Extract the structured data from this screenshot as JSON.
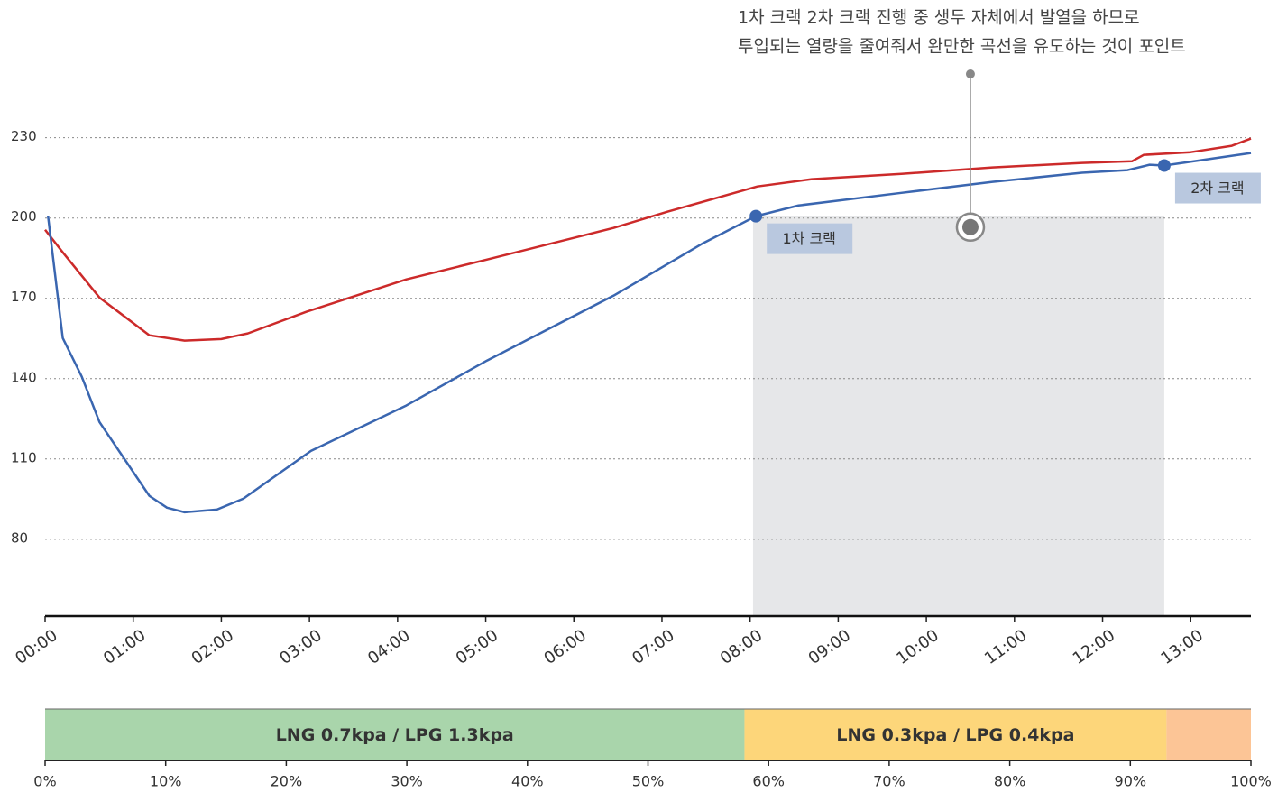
{
  "chart_data": [
    {
      "type": "line",
      "xlim": [
        0,
        821
      ],
      "ylim": [
        51.3,
        240
      ],
      "xticks": [
        {
          "value": 0,
          "label": "00:00"
        },
        {
          "value": 60,
          "label": "01:00"
        },
        {
          "value": 120,
          "label": "02:00"
        },
        {
          "value": 180,
          "label": "03:00"
        },
        {
          "value": 240,
          "label": "04:00"
        },
        {
          "value": 300,
          "label": "05:00"
        },
        {
          "value": 360,
          "label": "06:00"
        },
        {
          "value": 420,
          "label": "07:00"
        },
        {
          "value": 480,
          "label": "08:00"
        },
        {
          "value": 540,
          "label": "09:00"
        },
        {
          "value": 600,
          "label": "10:00"
        },
        {
          "value": 660,
          "label": "11:00"
        },
        {
          "value": 720,
          "label": "12:00"
        },
        {
          "value": 780,
          "label": "13:00"
        }
      ],
      "yticks": [
        80,
        110,
        140,
        170,
        200,
        230
      ],
      "grid": true,
      "series": [
        {
          "color": "#cc2a2a",
          "x": [
            0,
            12,
            37,
            71,
            95,
            120,
            138,
            178,
            246,
            301,
            387,
            424,
            485,
            522,
            583,
            645,
            706,
            740,
            748,
            780,
            808,
            821
          ],
          "values": [
            195.6,
            187.2,
            170.3,
            156.2,
            154.2,
            154.8,
            156.9,
            165,
            177.1,
            184.5,
            196.3,
            202.4,
            211.8,
            214.5,
            216.5,
            218.9,
            220.6,
            221.2,
            223.6,
            224.6,
            227,
            229.7
          ]
        },
        {
          "color": "#3a66b0",
          "x": [
            2,
            12,
            25,
            37,
            71,
            83,
            95,
            117,
            135,
            181,
            246,
            301,
            387,
            448,
            484,
            513,
            583,
            645,
            706,
            737,
            752,
            762,
            821
          ],
          "values": [
            200.7,
            155.2,
            140.7,
            123.8,
            96.2,
            91.8,
            90.1,
            91.1,
            95.2,
            113,
            130,
            146.8,
            171,
            190.6,
            200.7,
            204.7,
            209.4,
            213.5,
            216.9,
            217.9,
            219.9,
            219.6,
            224.3
          ]
        }
      ],
      "shade": [
        482,
        762
      ],
      "crack_labels": [
        {
          "label": "1차 크랙",
          "point": 14
        },
        {
          "label": "2차 크랙",
          "point": 21
        }
      ],
      "note": {
        "lines": [
          "1차 크랙 2차 크랙 진행 중 생두 자체에서 발열을 하므로",
          "투입되는 열량을 줄여줘서 완만한 곡선을 유도하는 것이 포인트"
        ],
        "x": 630,
        "y": 196.6
      }
    },
    {
      "type": "stacked-bar",
      "xlim": [
        0,
        100
      ],
      "xticks": [
        {
          "value": 0,
          "label": "0%"
        },
        {
          "value": 10,
          "label": "10%"
        },
        {
          "value": 20,
          "label": "20%"
        },
        {
          "value": 30,
          "label": "30%"
        },
        {
          "value": 40,
          "label": "40%"
        },
        {
          "value": 50,
          "label": "50%"
        },
        {
          "value": 60,
          "label": "60%"
        },
        {
          "value": 70,
          "label": "70%"
        },
        {
          "value": 80,
          "label": "80%"
        },
        {
          "value": 90,
          "label": "90%"
        },
        {
          "value": 100,
          "label": "100%"
        }
      ],
      "series": [
        {
          "name": "LNG 0.7kpa / LPG 1.3kpa",
          "color": "#a9d5ab",
          "values": [
            58
          ]
        },
        {
          "name": "LNG 0.3kpa / LPG 0.4kpa",
          "color": "#fdd67a",
          "values": [
            35
          ]
        },
        {
          "color": "#fcc596",
          "values": [
            7
          ]
        }
      ]
    }
  ]
}
